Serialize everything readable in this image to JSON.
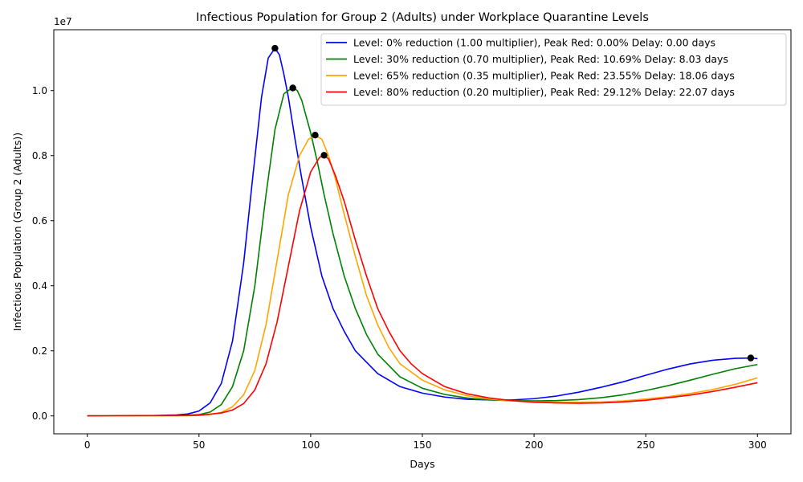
{
  "chart_data": {
    "type": "line",
    "title": "Infectious Population for Group 2 (Adults) under Workplace Quarantine Levels",
    "xlabel": "Days",
    "ylabel": "Infectious Population (Group 2 (Adults))",
    "y_offset_label": "1e7",
    "xlim": [
      -15,
      315
    ],
    "ylim": [
      -550000,
      11870000
    ],
    "xticks": [
      0,
      50,
      100,
      150,
      200,
      250,
      300
    ],
    "xtick_labels": [
      "0",
      "50",
      "100",
      "150",
      "200",
      "250",
      "300"
    ],
    "yticks": [
      0,
      2000000,
      4000000,
      6000000,
      8000000,
      10000000
    ],
    "ytick_labels": [
      "0.0",
      "0.2",
      "0.4",
      "0.6",
      "0.8",
      "1.0"
    ],
    "grid": false,
    "legend_position": "top-right",
    "series": [
      {
        "name": "Level: 0% reduction (1.00 multiplier), Peak Red: 0.00% Delay: 0.00 days",
        "color": "#0000ff",
        "x": [
          0,
          30,
          40,
          45,
          50,
          55,
          60,
          65,
          70,
          74,
          78,
          81,
          84,
          86,
          88,
          90,
          93,
          96,
          100,
          105,
          110,
          115,
          120,
          130,
          140,
          150,
          160,
          170,
          180,
          190,
          200,
          210,
          220,
          230,
          240,
          250,
          260,
          270,
          280,
          290,
          297,
          300
        ],
        "y": [
          0,
          10000,
          30000,
          60000,
          150000,
          400000,
          1000000,
          2300000,
          4700000,
          7300000,
          9800000,
          11000000,
          11300000,
          11100000,
          10500000,
          9800000,
          8500000,
          7300000,
          5800000,
          4300000,
          3300000,
          2600000,
          2000000,
          1300000,
          900000,
          700000,
          580000,
          510000,
          490000,
          490000,
          530000,
          610000,
          730000,
          880000,
          1050000,
          1250000,
          1440000,
          1600000,
          1710000,
          1770000,
          1780000,
          1760000
        ]
      },
      {
        "name": "Level: 30% reduction (0.70 multiplier), Peak Red: 10.69% Delay: 8.03 days",
        "color": "#008000",
        "x": [
          0,
          40,
          50,
          55,
          60,
          65,
          70,
          75,
          80,
          84,
          88,
          92,
          94,
          96,
          98,
          100,
          103,
          106,
          110,
          115,
          120,
          125,
          130,
          140,
          150,
          160,
          170,
          180,
          190,
          200,
          210,
          220,
          230,
          240,
          250,
          260,
          270,
          280,
          290,
          300
        ],
        "y": [
          0,
          5000,
          40000,
          120000,
          350000,
          900000,
          2000000,
          4000000,
          6800000,
          8800000,
          9900000,
          10100000,
          10000000,
          9700000,
          9200000,
          8700000,
          7800000,
          6800000,
          5600000,
          4300000,
          3300000,
          2500000,
          1900000,
          1200000,
          850000,
          660000,
          550000,
          490000,
          470000,
          460000,
          470000,
          500000,
          560000,
          650000,
          780000,
          930000,
          1100000,
          1280000,
          1450000,
          1580000
        ]
      },
      {
        "name": "Level: 65% reduction (0.35 multiplier), Peak Red: 23.55% Delay: 18.06 days",
        "color": "#ffa500",
        "x": [
          0,
          45,
          55,
          60,
          65,
          70,
          75,
          80,
          85,
          90,
          95,
          99,
          102,
          105,
          108,
          111,
          115,
          120,
          125,
          130,
          135,
          140,
          150,
          160,
          170,
          180,
          190,
          200,
          210,
          220,
          230,
          240,
          250,
          260,
          270,
          280,
          290,
          300
        ],
        "y": [
          0,
          5000,
          40000,
          110000,
          280000,
          650000,
          1400000,
          2800000,
          4800000,
          6800000,
          8000000,
          8500000,
          8630000,
          8500000,
          8000000,
          7300000,
          6200000,
          4900000,
          3700000,
          2800000,
          2100000,
          1600000,
          1100000,
          800000,
          620000,
          520000,
          460000,
          430000,
          420000,
          420000,
          430000,
          460000,
          520000,
          590000,
          690000,
          810000,
          970000,
          1170000
        ]
      },
      {
        "name": "Level: 80% reduction (0.20 multiplier), Peak Red: 29.12% Delay: 22.07 days",
        "color": "#ff0000",
        "x": [
          0,
          50,
          60,
          65,
          70,
          75,
          80,
          85,
          90,
          95,
          100,
          104,
          106,
          108,
          111,
          115,
          120,
          125,
          130,
          135,
          140,
          145,
          150,
          160,
          170,
          180,
          190,
          200,
          210,
          220,
          230,
          240,
          250,
          260,
          270,
          280,
          290,
          300
        ],
        "y": [
          0,
          20000,
          90000,
          180000,
          380000,
          800000,
          1600000,
          2900000,
          4600000,
          6300000,
          7500000,
          7950000,
          8010000,
          7900000,
          7400000,
          6600000,
          5400000,
          4300000,
          3300000,
          2600000,
          2000000,
          1600000,
          1300000,
          900000,
          680000,
          550000,
          470000,
          420000,
          400000,
          390000,
          400000,
          430000,
          480000,
          560000,
          640000,
          750000,
          880000,
          1020000
        ]
      }
    ],
    "markers": {
      "color": "#000000",
      "points": [
        {
          "x": 84,
          "y": 11300000
        },
        {
          "x": 92,
          "y": 10080000
        },
        {
          "x": 102,
          "y": 8630000
        },
        {
          "x": 106,
          "y": 8010000
        },
        {
          "x": 297,
          "y": 1780000
        }
      ]
    }
  }
}
